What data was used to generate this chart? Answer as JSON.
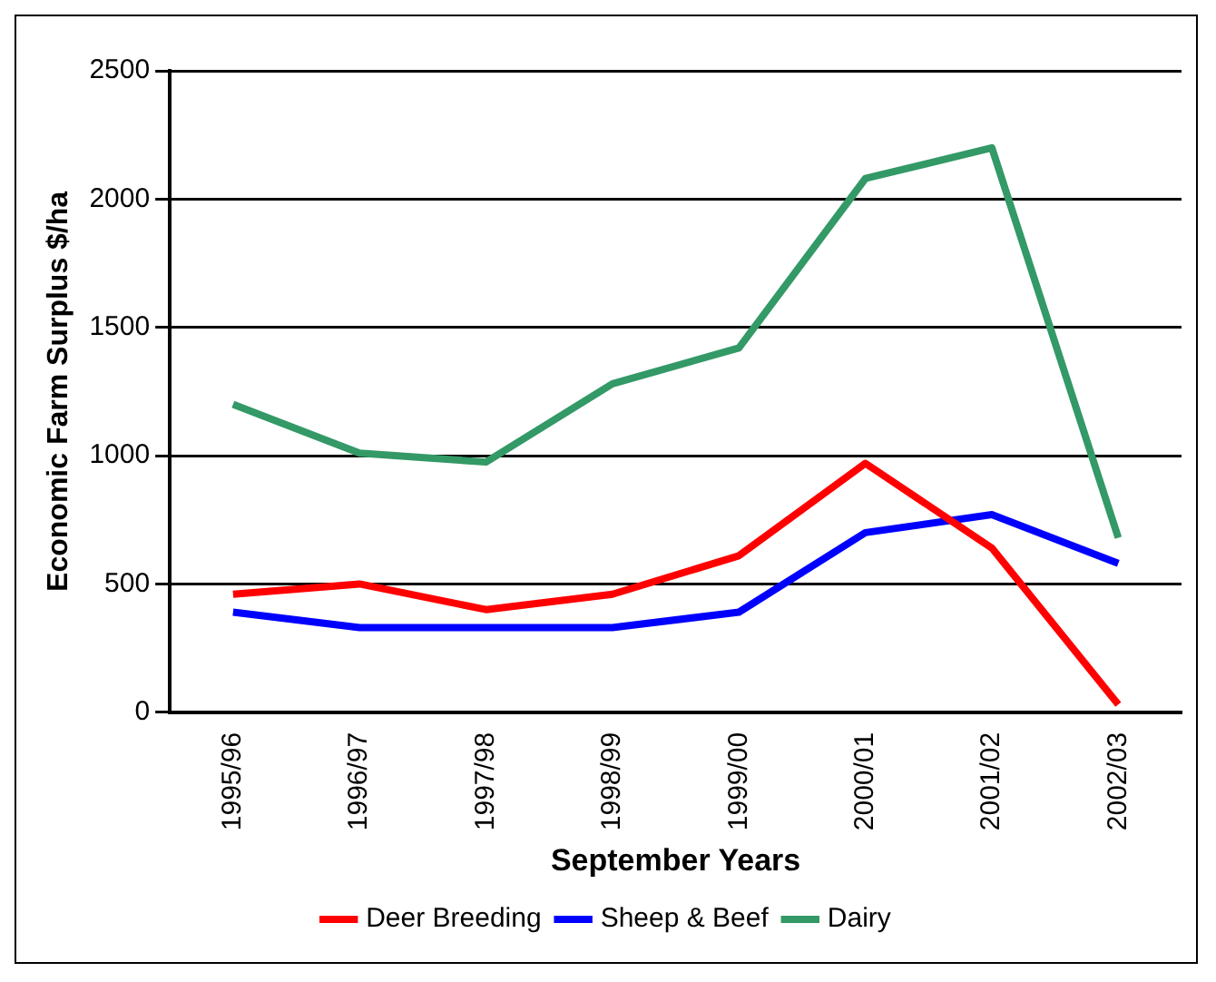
{
  "chart_data": {
    "type": "line",
    "xlabel": "September Years",
    "ylabel": "Economic Farm Surplus $/ha",
    "categories": [
      "1995/96",
      "1996/97",
      "1997/98",
      "1998/99",
      "1999/00",
      "2000/01",
      "2001/02",
      "2002/03"
    ],
    "series": [
      {
        "name": "Deer Breeding",
        "color": "#ff0000",
        "values": [
          460,
          500,
          400,
          460,
          610,
          970,
          640,
          30
        ]
      },
      {
        "name": "Sheep & Beef",
        "color": "#0000ff",
        "values": [
          390,
          330,
          330,
          330,
          390,
          700,
          770,
          580
        ]
      },
      {
        "name": "Dairy",
        "color": "#339966",
        "values": [
          1200,
          1010,
          975,
          1280,
          1420,
          2080,
          2200,
          680
        ]
      }
    ],
    "ylim": [
      0,
      2500
    ],
    "yticks": [
      0,
      500,
      1000,
      1500,
      2000,
      2500
    ],
    "grid": "y",
    "legend": "bottom",
    "marker": "none",
    "line_style": "solid"
  }
}
